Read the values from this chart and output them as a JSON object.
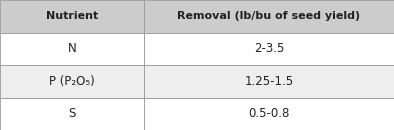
{
  "header": [
    "Nutrient",
    "Removal (lb/bu of seed yield)"
  ],
  "rows": [
    [
      "N",
      "2-3.5"
    ],
    [
      "P (P₂O₅)",
      "1.25-1.5"
    ],
    [
      "S",
      "0.5-0.8"
    ]
  ],
  "header_bg": "#cccccc",
  "row_bgs": [
    "#ffffff",
    "#eeeeee",
    "#ffffff"
  ],
  "border_color": "#999999",
  "header_fontsize": 8.0,
  "cell_fontsize": 8.5,
  "text_color": "#222222",
  "col_split": 0.365,
  "fig_w": 3.94,
  "fig_h": 1.3,
  "dpi": 100
}
